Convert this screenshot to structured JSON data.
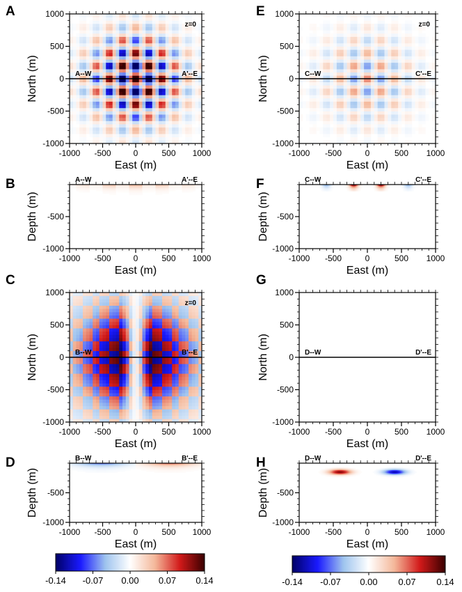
{
  "chart_data": [
    {
      "panel": "A",
      "type": "heatmap",
      "view": "plan",
      "xlabel": "East (m)",
      "ylabel": "North (m)",
      "xlim": [
        -1000,
        1000
      ],
      "ylim": [
        -1000,
        1000
      ],
      "xticks": [
        -1000,
        -500,
        0,
        500,
        1000
      ],
      "yticks": [
        -1000,
        -500,
        0,
        500,
        1000
      ],
      "depth_note": "z=0",
      "profile": {
        "y": 0,
        "start_label": "A--W",
        "end_label": "A'--E"
      },
      "pattern": "checkerboard",
      "amplitude": 0.14
    },
    {
      "panel": "B",
      "type": "heatmap",
      "view": "section",
      "xlabel": "East (m)",
      "ylabel": "Depth (m)",
      "xlim": [
        -1000,
        1000
      ],
      "ylim": [
        -1000,
        0
      ],
      "xticks": [
        -1000,
        -500,
        0,
        500,
        1000
      ],
      "yticks": [
        -500,
        -1000
      ],
      "end_labels": [
        "A--W",
        "A'--E"
      ],
      "pattern": "shallow",
      "amplitude": 0.05
    },
    {
      "panel": "C",
      "type": "heatmap",
      "view": "plan",
      "xlabel": "East (m)",
      "ylabel": "North (m)",
      "xlim": [
        -1000,
        1000
      ],
      "ylim": [
        -1000,
        1000
      ],
      "xticks": [
        -1000,
        -500,
        0,
        500,
        1000
      ],
      "yticks": [
        -1000,
        -500,
        0,
        500,
        1000
      ],
      "depth_note": "z=0",
      "profile": {
        "y": 0,
        "start_label": "B--W",
        "end_label": "B'--E"
      },
      "pattern": "quadrant",
      "amplitude": 0.14
    },
    {
      "panel": "D",
      "type": "heatmap",
      "view": "section",
      "xlabel": "East (m)",
      "ylabel": "Depth (m)",
      "xlim": [
        -1000,
        1000
      ],
      "ylim": [
        -1000,
        0
      ],
      "xticks": [
        -1000,
        -500,
        0,
        500,
        1000
      ],
      "yticks": [
        -500,
        -1000
      ],
      "end_labels": [
        "B--W",
        "B'--E"
      ],
      "pattern": "shallow_dipole",
      "amplitude": 0.08
    },
    {
      "panel": "E",
      "type": "heatmap",
      "view": "plan",
      "xlabel": "East (m)",
      "ylabel": "North (m)",
      "xlim": [
        -1000,
        1000
      ],
      "ylim": [
        -1000,
        1000
      ],
      "xticks": [
        -1000,
        -500,
        0,
        500,
        1000
      ],
      "yticks": [
        -1000,
        -500,
        0,
        500,
        1000
      ],
      "depth_note": "z=0",
      "profile": {
        "y": 0,
        "start_label": "C--W",
        "end_label": "C'--E"
      },
      "pattern": "checkerboard",
      "amplitude": 0.05
    },
    {
      "panel": "F",
      "type": "heatmap",
      "view": "section",
      "xlabel": "East (m)",
      "ylabel": "Depth (m)",
      "xlim": [
        -1000,
        1000
      ],
      "ylim": [
        -1000,
        0
      ],
      "xticks": [
        -1000,
        -500,
        0,
        500,
        1000
      ],
      "yticks": [
        -500,
        -1000
      ],
      "end_labels": [
        "C--W",
        "C'--E"
      ],
      "pattern": "shallow_blocks",
      "amplitude": 0.14
    },
    {
      "panel": "G",
      "type": "heatmap",
      "view": "plan",
      "xlabel": "East (m)",
      "ylabel": "North (m)",
      "xlim": [
        -1000,
        1000
      ],
      "ylim": [
        -1000,
        1000
      ],
      "xticks": [
        -1000,
        -500,
        0,
        500,
        1000
      ],
      "yticks": [
        -1000,
        -500,
        0,
        500,
        1000
      ],
      "profile": {
        "y": 0,
        "start_label": "D--W",
        "end_label": "D'--E"
      },
      "pattern": "blank",
      "amplitude": 0.0
    },
    {
      "panel": "H",
      "type": "heatmap",
      "view": "section",
      "xlabel": "East (m)",
      "ylabel": "Depth (m)",
      "xlim": [
        -1000,
        1000
      ],
      "ylim": [
        -1000,
        0
      ],
      "xticks": [
        -1000,
        -500,
        0,
        500,
        1000
      ],
      "yticks": [
        -500,
        -1000
      ],
      "end_labels": [
        "D--W",
        "D'--E"
      ],
      "pattern": "buried_dipole",
      "amplitude": 0.12
    }
  ],
  "colorbar": {
    "ticks": [
      "-0.14",
      "-0.07",
      "0.00",
      "0.07",
      "0.14"
    ],
    "range": [
      -0.14,
      0.14
    ],
    "colors": [
      "#000066",
      "#1a1aff",
      "#9ec3ee",
      "#ffffff",
      "#f4b89a",
      "#d21a1a",
      "#3a0000"
    ]
  }
}
